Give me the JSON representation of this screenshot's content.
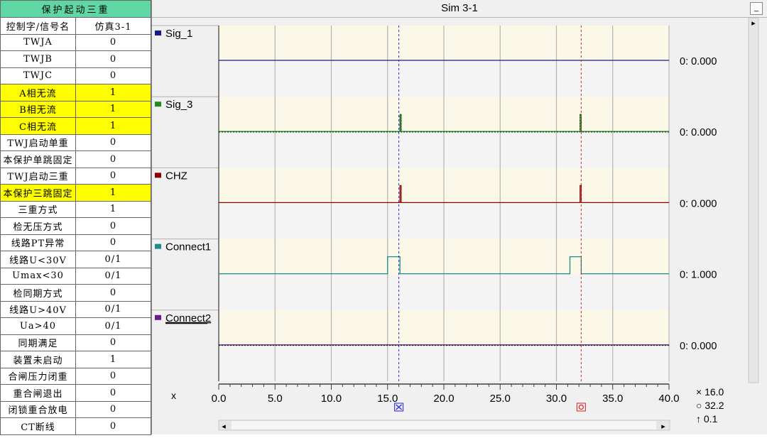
{
  "table": {
    "title": "保护起动三重",
    "header": [
      "控制字/信号名",
      "仿真3-1"
    ],
    "rows": [
      {
        "name": "TWJA",
        "value": "0",
        "highlight": false
      },
      {
        "name": "TWJB",
        "value": "0",
        "highlight": false
      },
      {
        "name": "TWJC",
        "value": "0",
        "highlight": false
      },
      {
        "name": "A相无流",
        "value": "1",
        "highlight": true
      },
      {
        "name": "B相无流",
        "value": "1",
        "highlight": true
      },
      {
        "name": "C相无流",
        "value": "1",
        "highlight": true
      },
      {
        "name": "TWJ启动单重",
        "value": "0",
        "highlight": false
      },
      {
        "name": "本保护单跳固定",
        "value": "0",
        "highlight": false
      },
      {
        "name": "TWJ启动三重",
        "value": "0",
        "highlight": false
      },
      {
        "name": "本保护三跳固定",
        "value": "1",
        "highlight": true
      },
      {
        "name": "三重方式",
        "value": "1",
        "highlight": false
      },
      {
        "name": "检无压方式",
        "value": "0",
        "highlight": false
      },
      {
        "name": "线路PT异常",
        "value": "0",
        "highlight": false
      },
      {
        "name": "线路U<30V",
        "value": "0/1",
        "highlight": false
      },
      {
        "name": "Umax<30",
        "value": "0/1",
        "highlight": false
      },
      {
        "name": "检同期方式",
        "value": "0",
        "highlight": false
      },
      {
        "name": "线路U>40V",
        "value": "0/1",
        "highlight": false
      },
      {
        "name": "Ua>40",
        "value": "0/1",
        "highlight": false
      },
      {
        "name": "同期满足",
        "value": "0",
        "highlight": false
      },
      {
        "name": "装置未启动",
        "value": "1",
        "highlight": false
      },
      {
        "name": "合闸压力闭重",
        "value": "0",
        "highlight": false
      },
      {
        "name": "重合闸退出",
        "value": "0",
        "highlight": false
      },
      {
        "name": "闭锁重合放电",
        "value": "0",
        "highlight": false
      },
      {
        "name": "CT断线",
        "value": "0",
        "highlight": false
      }
    ]
  },
  "window": {
    "title": "Sim 3-1",
    "minimize_label": "_",
    "scroll_right_arrow": "▸",
    "scroll_left_arrow": "◂"
  },
  "chart_data": {
    "type": "line",
    "xlabel": "x",
    "xlim": [
      0,
      40
    ],
    "xticks": [
      "0.0",
      "5.0",
      "10.0",
      "15.0",
      "20.0",
      "25.0",
      "30.0",
      "35.0",
      "40.0"
    ],
    "cursor1_x": 16.0,
    "cursor2_x": 32.2,
    "cursor_readout": {
      "cursor1": "× 16.0",
      "cursor2": "○ 32.2",
      "delta": "↑ 0.1"
    },
    "series": [
      {
        "name": "Sig_1",
        "color": "#1a1a8c",
        "underline": false,
        "value_label": "0: 0.000",
        "points": [
          [
            0,
            0
          ],
          [
            40,
            0
          ]
        ]
      },
      {
        "name": "Sig_3",
        "color": "#1e8c1e",
        "underline": false,
        "value_label": "0: 0.000",
        "points": [
          [
            0,
            0
          ],
          [
            16.1,
            0
          ],
          [
            16.1,
            1
          ],
          [
            16.2,
            1
          ],
          [
            16.2,
            0
          ],
          [
            32.1,
            0
          ],
          [
            32.1,
            1
          ],
          [
            32.2,
            1
          ],
          [
            32.2,
            0
          ],
          [
            40,
            0
          ]
        ]
      },
      {
        "name": "CHZ",
        "color": "#8b0000",
        "underline": false,
        "value_label": "0: 0.000",
        "points": [
          [
            0,
            0
          ],
          [
            16.1,
            0
          ],
          [
            16.1,
            1
          ],
          [
            16.2,
            1
          ],
          [
            16.2,
            0
          ],
          [
            32.1,
            0
          ],
          [
            32.1,
            1
          ],
          [
            32.2,
            1
          ],
          [
            32.2,
            0
          ],
          [
            40,
            0
          ]
        ]
      },
      {
        "name": "Connect1",
        "color": "#1a8c8c",
        "underline": false,
        "value_label": "0: 1.000",
        "points": [
          [
            0,
            0
          ],
          [
            15.0,
            0
          ],
          [
            15.0,
            1
          ],
          [
            16.1,
            1
          ],
          [
            16.1,
            0
          ],
          [
            31.2,
            0
          ],
          [
            31.2,
            1
          ],
          [
            32.2,
            1
          ],
          [
            32.2,
            0
          ],
          [
            40,
            0
          ]
        ]
      },
      {
        "name": "Connect2",
        "color": "#6a1a8c",
        "underline": true,
        "value_label": "0: 0.000",
        "points": [
          [
            0,
            0
          ],
          [
            40,
            0
          ]
        ]
      }
    ]
  }
}
